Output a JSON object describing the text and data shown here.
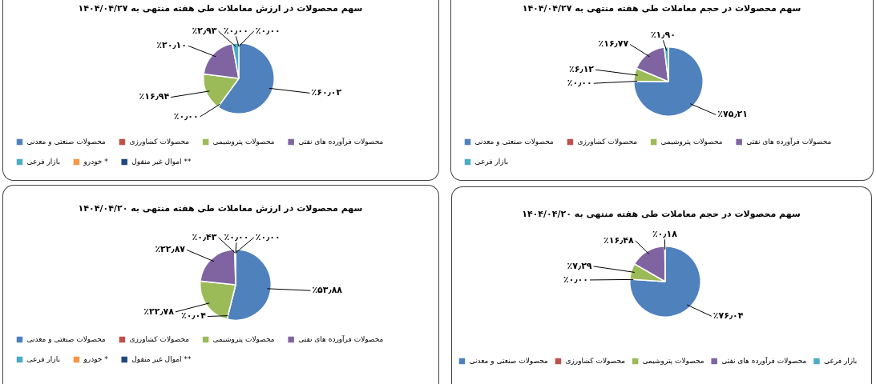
{
  "chart_data": [
    {
      "type": "pie",
      "title": "سهم محصولات در ارزش معاملات طی هفته منتهی به ۱۴۰۴/۰۴/۲۷",
      "categories": [
        "محصولات صنعتی و معدنی",
        "محصولات کشاورزی",
        "محصولات پتروشیمی",
        "محصولات فرآورده های نفتی",
        "بازار فرعی",
        "* خودرو",
        "** اموال غیر منقول"
      ],
      "values": [
        60.02,
        0,
        16.94,
        20.1,
        2.93,
        0,
        0
      ],
      "colors": [
        "#4f81bd",
        "#c0504d",
        "#9bbb59",
        "#8064a2",
        "#4bacc6",
        "#f79646",
        "#1f497d"
      ],
      "value_labels": [
        "٪۶۰٫۰۲",
        "٪۰٫۰۰",
        "٪۱۶٫۹۴",
        "٪۲۰٫۱۰",
        "٪۲٫۹۳",
        "٪۰٫۰۰",
        "٪۰٫۰۰"
      ],
      "legend": "bottom"
    },
    {
      "type": "pie",
      "title": "سهم محصولات در حجم معاملات طی هفته منتهی به ۱۴۰۴/۰۴/۲۷",
      "categories": [
        "محصولات صنعتی و معدنی",
        "محصولات کشاورزی",
        "محصولات پتروشیمی",
        "محصولات فرآورده های نفتی",
        "بازار فرعی"
      ],
      "values": [
        75.21,
        0,
        6.12,
        16.77,
        1.9
      ],
      "colors": [
        "#4f81bd",
        "#c0504d",
        "#9bbb59",
        "#8064a2",
        "#4bacc6"
      ],
      "value_labels": [
        "٪۷۵٫۲۱",
        "٪۰٫۰۰",
        "٪۶٫۱۲",
        "٪۱۶٫۷۷",
        "٪۱٫۹۰"
      ],
      "legend": "bottom"
    },
    {
      "type": "pie",
      "title": "سهم محصولات در ارزش معاملات طی هفته منتهی به ۱۴۰۴/۰۴/۲۰",
      "categories": [
        "محصولات صنعتی و معدنی",
        "محصولات کشاورزی",
        "محصولات پتروشیمی",
        "محصولات فرآورده های نفتی",
        "بازار فرعی",
        "* خودرو",
        "** اموال غیر منقول"
      ],
      "values": [
        53.88,
        0.04,
        22.78,
        22.87,
        0.43,
        0,
        0
      ],
      "colors": [
        "#4f81bd",
        "#c0504d",
        "#9bbb59",
        "#8064a2",
        "#4bacc6",
        "#f79646",
        "#1f497d"
      ],
      "value_labels": [
        "٪۵۳٫۸۸",
        "٪۰٫۰۴",
        "٪۲۲٫۷۸",
        "٪۲۲٫۸۷",
        "٪۰٫۴۳",
        "٪۰٫۰۰",
        "٪۰٫۰۰"
      ],
      "legend": "bottom"
    },
    {
      "type": "pie",
      "title": "سهم محصولات در حجم معاملات طی هفته منتهی به ۱۴۰۴/۰۴/۲۰",
      "categories": [
        "محصولات صنعتی و معدنی",
        "محصولات کشاورزی",
        "محصولات پتروشیمی",
        "محصولات فرآورده های نفتی",
        "بازار فرعی"
      ],
      "values": [
        76.04,
        0,
        7.29,
        16.48,
        0.18
      ],
      "colors": [
        "#4f81bd",
        "#c0504d",
        "#9bbb59",
        "#8064a2",
        "#4bacc6"
      ],
      "value_labels": [
        "٪۷۶٫۰۴",
        "٪۰٫۰۰",
        "٪۷٫۲۹",
        "٪۱۶٫۴۸",
        "٪۰٫۱۸"
      ],
      "legend": "bottom"
    }
  ]
}
